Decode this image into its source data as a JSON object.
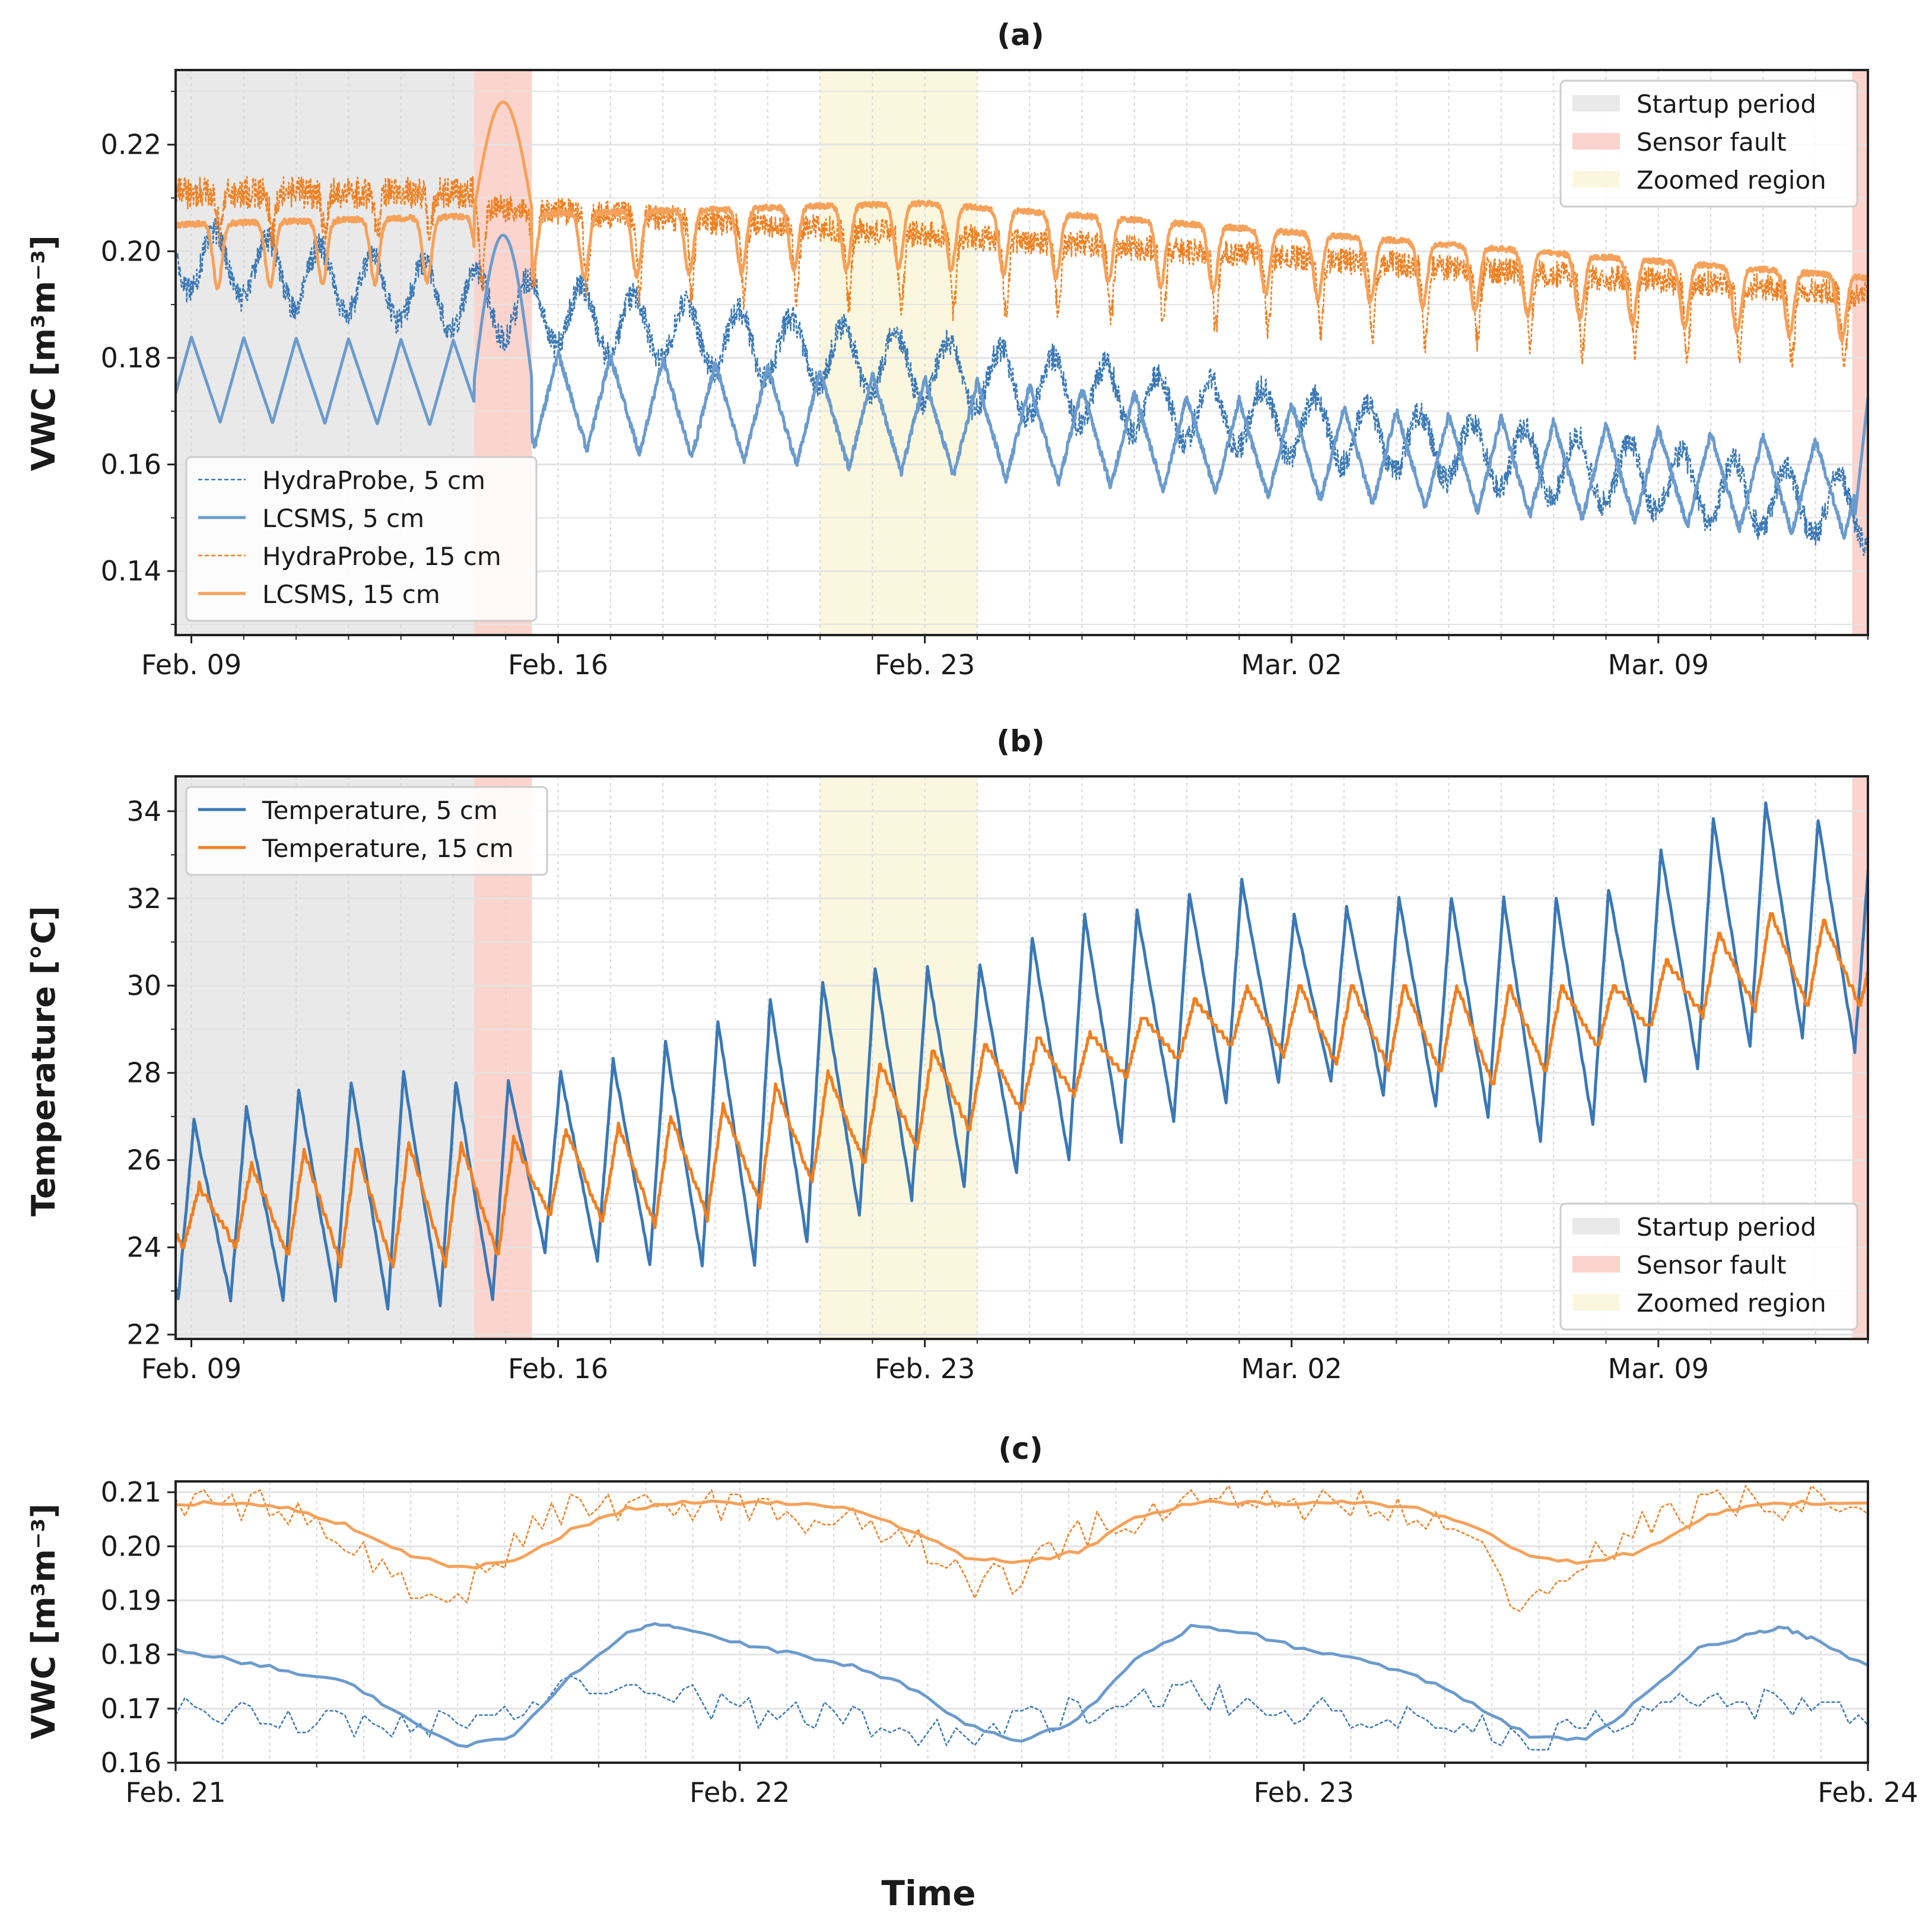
{
  "figure": {
    "xlabel_shared": "Time"
  },
  "colors": {
    "blue": "#3a78b5",
    "blue_light": "#6b9bcd",
    "orange": "#f07f20",
    "orange_light": "#f6a159",
    "startup": "#e9e9e9",
    "fault": "#fbd4cd",
    "zoom": "#fbf7df",
    "grid": "#e3e3e3",
    "minor_grid": "#d6d6d6",
    "axis": "#222222"
  },
  "shading": {
    "startup": {
      "label": "Startup period",
      "x_range": [
        -0.3,
        5.4
      ]
    },
    "fault": [
      {
        "label": "Sensor fault",
        "x_range": [
          5.4,
          6.5
        ]
      },
      {
        "x_range": [
          31.7,
          32.0
        ]
      }
    ],
    "zoom": {
      "label": "Zoomed region",
      "x_range": [
        12.0,
        15.0
      ]
    }
  },
  "chart_data": [
    {
      "id": "a",
      "type": "line",
      "title": "(a)",
      "ylabel": "VWC [m³m⁻³]",
      "xlim": [
        -0.3,
        32.0
      ],
      "ylim": [
        0.128,
        0.234
      ],
      "yticks": [
        0.14,
        0.16,
        0.18,
        0.2,
        0.22
      ],
      "ytick_labels": [
        "0.14",
        "0.16",
        "0.18",
        "0.20",
        "0.22"
      ],
      "xticks": [
        0,
        7,
        14,
        21,
        28
      ],
      "xtick_labels": [
        "Feb. 09",
        "Feb. 16",
        "Feb. 23",
        "Mar. 02",
        "Mar. 09"
      ],
      "x_units": "days since Feb. 09 00:00",
      "grid": true,
      "legends": [
        {
          "placement": "lower-left",
          "entries": [
            "HydraProbe, 5 cm",
            "LCSMS, 5 cm",
            "HydraProbe, 15 cm",
            "LCSMS, 15 cm"
          ]
        },
        {
          "placement": "upper-right",
          "entries": [
            "Startup period",
            "Sensor fault",
            "Zoomed region"
          ]
        }
      ],
      "series": [
        {
          "name": "HydraProbe, 5 cm",
          "style": "dashed",
          "color": "#3a78b5",
          "trend_start": 0.199,
          "trend_end": 0.151,
          "daily_amplitude": 0.006,
          "noise": 0.002
        },
        {
          "name": "LCSMS, 5 cm",
          "style": "solid",
          "color": "#6b9bcd",
          "wet_peak_start": 0.186,
          "wet_peak_end": 0.164,
          "daily_dip": 0.018,
          "fault_spike_peak": 0.203,
          "end_jump": 0.174
        },
        {
          "name": "HydraProbe, 15 cm",
          "style": "dashed",
          "color": "#f07f20",
          "trend_start": 0.212,
          "trend_end": 0.192,
          "daily_dip": 0.012,
          "noise": 0.002
        },
        {
          "name": "LCSMS, 15 cm",
          "style": "solid",
          "color": "#f6a159",
          "peak_start": 0.205,
          "peak_mid": 0.209,
          "peak_end": 0.195,
          "daily_dip": 0.012,
          "fault_spike_peak": 0.228
        }
      ]
    },
    {
      "id": "b",
      "type": "line",
      "title": "(b)",
      "ylabel": "Temperature [°C]",
      "xlim": [
        -0.3,
        32.0
      ],
      "ylim": [
        21.9,
        34.8
      ],
      "yticks": [
        22,
        24,
        26,
        28,
        30,
        32,
        34
      ],
      "ytick_labels": [
        "22",
        "24",
        "26",
        "28",
        "30",
        "32",
        "34"
      ],
      "xticks": [
        0,
        7,
        14,
        21,
        28
      ],
      "xtick_labels": [
        "Feb. 09",
        "Feb. 16",
        "Feb. 23",
        "Mar. 02",
        "Mar. 09"
      ],
      "grid": true,
      "legends": [
        {
          "placement": "upper-left",
          "entries": [
            "Temperature, 5 cm",
            "Temperature, 15 cm"
          ]
        },
        {
          "placement": "lower-right",
          "entries": [
            "Startup period",
            "Sensor fault",
            "Zoomed region"
          ]
        }
      ],
      "daily_maxima_5cm": [
        26.9,
        27.2,
        27.6,
        27.8,
        28.0,
        27.8,
        27.8,
        28.0,
        28.3,
        28.7,
        29.2,
        29.7,
        30.1,
        30.4,
        30.4,
        30.5,
        31.1,
        31.6,
        31.7,
        32.1,
        32.4,
        31.6,
        31.8,
        32.0,
        32.0,
        32.0,
        32.0,
        32.2,
        33.1,
        33.8,
        34.2,
        33.8,
        33.4,
        33.1
      ],
      "daily_minima_5cm": [
        22.8,
        22.8,
        22.8,
        22.6,
        22.7,
        22.8,
        23.9,
        23.7,
        23.6,
        23.6,
        23.6,
        24.1,
        24.7,
        25.1,
        25.4,
        25.7,
        26.0,
        26.4,
        26.9,
        27.3,
        27.8,
        27.8,
        27.5,
        27.2,
        27.0,
        26.4,
        26.8,
        27.8,
        28.1,
        28.6,
        28.8,
        28.5,
        29.0
      ],
      "daily_maxima_15cm": [
        25.4,
        25.9,
        26.2,
        26.3,
        26.4,
        26.4,
        26.5,
        26.7,
        26.8,
        27.0,
        27.3,
        27.7,
        28.0,
        28.2,
        28.5,
        28.7,
        28.8,
        28.9,
        29.3,
        29.7,
        30.0,
        30.0,
        30.0,
        30.0,
        30.0,
        30.0,
        30.0,
        30.0,
        30.6,
        31.2,
        31.7,
        31.5,
        31.2,
        31.1
      ],
      "daily_minima_15cm": [
        24.0,
        23.8,
        23.6,
        23.5,
        23.6,
        23.8,
        24.7,
        24.6,
        24.5,
        24.7,
        25.0,
        25.5,
        25.9,
        26.3,
        26.7,
        27.1,
        27.5,
        27.9,
        28.3,
        28.6,
        28.4,
        28.2,
        28.1,
        28.0,
        27.7,
        28.0,
        28.6,
        29.0,
        29.3,
        29.5,
        29.5,
        29.5
      ],
      "series": [
        {
          "name": "Temperature, 5 cm",
          "style": "solid",
          "color": "#3a78b5"
        },
        {
          "name": "Temperature, 15 cm",
          "style": "solid",
          "color": "#f07f20"
        }
      ]
    },
    {
      "id": "c",
      "type": "line",
      "title": "(c)",
      "ylabel": "VWC [m³m⁻³]",
      "xlim": [
        12.0,
        15.0
      ],
      "ylim": [
        0.16,
        0.212
      ],
      "yticks": [
        0.16,
        0.17,
        0.18,
        0.19,
        0.2,
        0.21
      ],
      "ytick_labels": [
        "0.16",
        "0.17",
        "0.18",
        "0.19",
        "0.20",
        "0.21"
      ],
      "xticks": [
        12,
        13,
        14,
        15
      ],
      "xtick_labels": [
        "Feb. 21",
        "Feb. 22",
        "Feb. 23",
        "Feb. 24"
      ],
      "grid": true,
      "series": [
        {
          "name": "HydraProbe, 5 cm",
          "style": "dashed",
          "color": "#3a78b5",
          "points": [
            [
              12.0,
              0.171
            ],
            [
              12.1,
              0.17
            ],
            [
              12.2,
              0.168
            ],
            [
              12.3,
              0.167
            ],
            [
              12.4,
              0.166
            ],
            [
              12.5,
              0.168
            ],
            [
              12.6,
              0.171
            ],
            [
              12.7,
              0.175
            ],
            [
              12.8,
              0.176
            ],
            [
              12.9,
              0.172
            ],
            [
              13.0,
              0.17
            ],
            [
              13.1,
              0.169
            ],
            [
              13.2,
              0.168
            ],
            [
              13.3,
              0.166
            ],
            [
              13.4,
              0.166
            ],
            [
              13.5,
              0.168
            ],
            [
              13.6,
              0.169
            ],
            [
              13.7,
              0.171
            ],
            [
              13.8,
              0.172
            ],
            [
              13.9,
              0.171
            ],
            [
              14.0,
              0.17
            ],
            [
              14.1,
              0.169
            ],
            [
              14.2,
              0.168
            ],
            [
              14.3,
              0.166
            ],
            [
              14.4,
              0.164
            ],
            [
              14.5,
              0.167
            ],
            [
              14.6,
              0.169
            ],
            [
              14.7,
              0.172
            ],
            [
              14.8,
              0.171
            ],
            [
              14.9,
              0.17
            ],
            [
              15.0,
              0.167
            ]
          ]
        },
        {
          "name": "LCSMS, 5 cm",
          "style": "solid",
          "color": "#6b9bcd",
          "points": [
            [
              12.0,
              0.181
            ],
            [
              12.1,
              0.179
            ],
            [
              12.2,
              0.177
            ],
            [
              12.3,
              0.175
            ],
            [
              12.4,
              0.169
            ],
            [
              12.5,
              0.163
            ],
            [
              12.6,
              0.165
            ],
            [
              12.7,
              0.176
            ],
            [
              12.8,
              0.184
            ],
            [
              12.85,
              0.186
            ],
            [
              12.9,
              0.185
            ],
            [
              13.0,
              0.182
            ],
            [
              13.1,
              0.18
            ],
            [
              13.2,
              0.178
            ],
            [
              13.3,
              0.174
            ],
            [
              13.4,
              0.167
            ],
            [
              13.5,
              0.164
            ],
            [
              13.6,
              0.168
            ],
            [
              13.7,
              0.179
            ],
            [
              13.8,
              0.185
            ],
            [
              13.9,
              0.184
            ],
            [
              14.0,
              0.181
            ],
            [
              14.1,
              0.179
            ],
            [
              14.2,
              0.176
            ],
            [
              14.3,
              0.171
            ],
            [
              14.4,
              0.165
            ],
            [
              14.5,
              0.164
            ],
            [
              14.6,
              0.172
            ],
            [
              14.7,
              0.181
            ],
            [
              14.8,
              0.184
            ],
            [
              14.85,
              0.185
            ],
            [
              14.9,
              0.183
            ],
            [
              15.0,
              0.178
            ]
          ]
        },
        {
          "name": "HydraProbe, 15 cm",
          "style": "dashed",
          "color": "#f07f20",
          "points": [
            [
              12.0,
              0.207
            ],
            [
              12.1,
              0.208
            ],
            [
              12.2,
              0.206
            ],
            [
              12.3,
              0.2
            ],
            [
              12.4,
              0.194
            ],
            [
              12.5,
              0.19
            ],
            [
              12.6,
              0.2
            ],
            [
              12.7,
              0.207
            ],
            [
              12.8,
              0.208
            ],
            [
              12.9,
              0.207
            ],
            [
              13.0,
              0.208
            ],
            [
              13.1,
              0.206
            ],
            [
              13.2,
              0.205
            ],
            [
              13.3,
              0.201
            ],
            [
              13.4,
              0.193
            ],
            [
              13.5,
              0.195
            ],
            [
              13.6,
              0.202
            ],
            [
              13.7,
              0.206
            ],
            [
              13.8,
              0.208
            ],
            [
              13.9,
              0.209
            ],
            [
              14.0,
              0.208
            ],
            [
              14.1,
              0.208
            ],
            [
              14.2,
              0.205
            ],
            [
              14.3,
              0.2
            ],
            [
              14.4,
              0.188
            ],
            [
              14.5,
              0.197
            ],
            [
              14.6,
              0.204
            ],
            [
              14.7,
              0.207
            ],
            [
              14.8,
              0.208
            ],
            [
              14.9,
              0.208
            ],
            [
              15.0,
              0.206
            ]
          ]
        },
        {
          "name": "LCSMS, 15 cm",
          "style": "solid",
          "color": "#f6a159",
          "points": [
            [
              12.0,
              0.208
            ],
            [
              12.1,
              0.208
            ],
            [
              12.2,
              0.207
            ],
            [
              12.3,
              0.204
            ],
            [
              12.4,
              0.199
            ],
            [
              12.5,
              0.196
            ],
            [
              12.6,
              0.197
            ],
            [
              12.7,
              0.203
            ],
            [
              12.8,
              0.207
            ],
            [
              12.9,
              0.208
            ],
            [
              13.0,
              0.208
            ],
            [
              13.1,
              0.208
            ],
            [
              13.2,
              0.207
            ],
            [
              13.3,
              0.203
            ],
            [
              13.4,
              0.198
            ],
            [
              13.5,
              0.197
            ],
            [
              13.6,
              0.199
            ],
            [
              13.7,
              0.205
            ],
            [
              13.8,
              0.208
            ],
            [
              13.9,
              0.208
            ],
            [
              14.0,
              0.208
            ],
            [
              14.1,
              0.208
            ],
            [
              14.2,
              0.207
            ],
            [
              14.3,
              0.204
            ],
            [
              14.4,
              0.198
            ],
            [
              14.5,
              0.197
            ],
            [
              14.6,
              0.199
            ],
            [
              14.7,
              0.205
            ],
            [
              14.8,
              0.208
            ],
            [
              14.9,
              0.208
            ],
            [
              15.0,
              0.208
            ]
          ]
        }
      ]
    }
  ]
}
